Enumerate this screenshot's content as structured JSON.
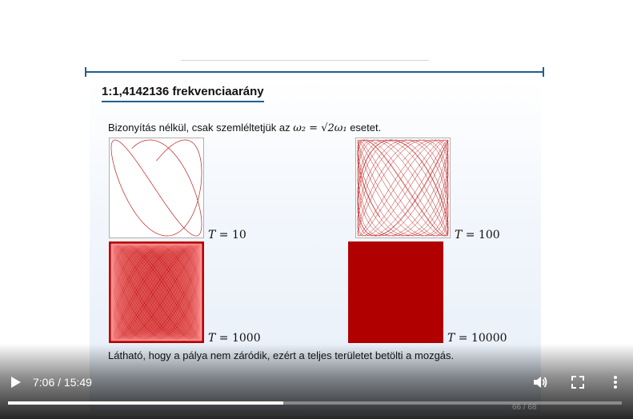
{
  "slide": {
    "title": "1:1,4142136 frekvenciaarány",
    "intro_text": "Bizonyítás nélkül, csak szemléltetjük az",
    "intro_formula": "ω₂ = √2ω₁",
    "intro_suffix": "esetet.",
    "panels": [
      {
        "label_var": "T",
        "label_value": "= 10"
      },
      {
        "label_var": "T",
        "label_value": "= 100"
      },
      {
        "label_var": "T",
        "label_value": "= 1000"
      },
      {
        "label_var": "T",
        "label_value": "= 10000"
      }
    ],
    "caption": "Látható, hogy a pálya nem záródik, ezért a teljes területet betölti a mozgás.",
    "page_number": "66 / 68",
    "accent_color": "#1f5f8f",
    "curve_color": "#b00000"
  },
  "player": {
    "time_display": "7:06 / 15:49",
    "progress_fraction": 0.449,
    "icons": [
      "play-icon",
      "volume-icon",
      "fullscreen-icon",
      "more-vert-icon"
    ]
  }
}
